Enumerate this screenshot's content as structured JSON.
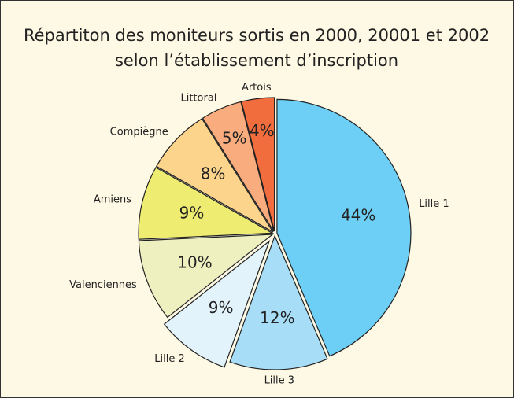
{
  "chart_data": {
    "type": "pie",
    "title": [
      "Répartiton des moniteurs sortis en 2000, 20001 et 2002",
      "selon l’établissement d’inscription"
    ],
    "categories": [
      "Lille 1",
      "Lille 3",
      "Lille 2",
      "Valenciennes",
      "Amiens",
      "Compiègne",
      "Littoral",
      "Artois"
    ],
    "values": [
      44,
      12,
      9,
      10,
      9,
      8,
      5,
      4
    ],
    "value_labels": [
      "44%",
      "12%",
      "9%",
      "10%",
      "9%",
      "8%",
      "5%",
      "4%"
    ],
    "colors": [
      "#6dcff6",
      "#a8ddf8",
      "#e2f3fc",
      "#eef0c0",
      "#efec72",
      "#fdd48c",
      "#f9ad7e",
      "#f26d3d"
    ],
    "exploded": [
      false,
      false,
      true,
      false,
      false,
      false,
      false,
      false
    ]
  }
}
